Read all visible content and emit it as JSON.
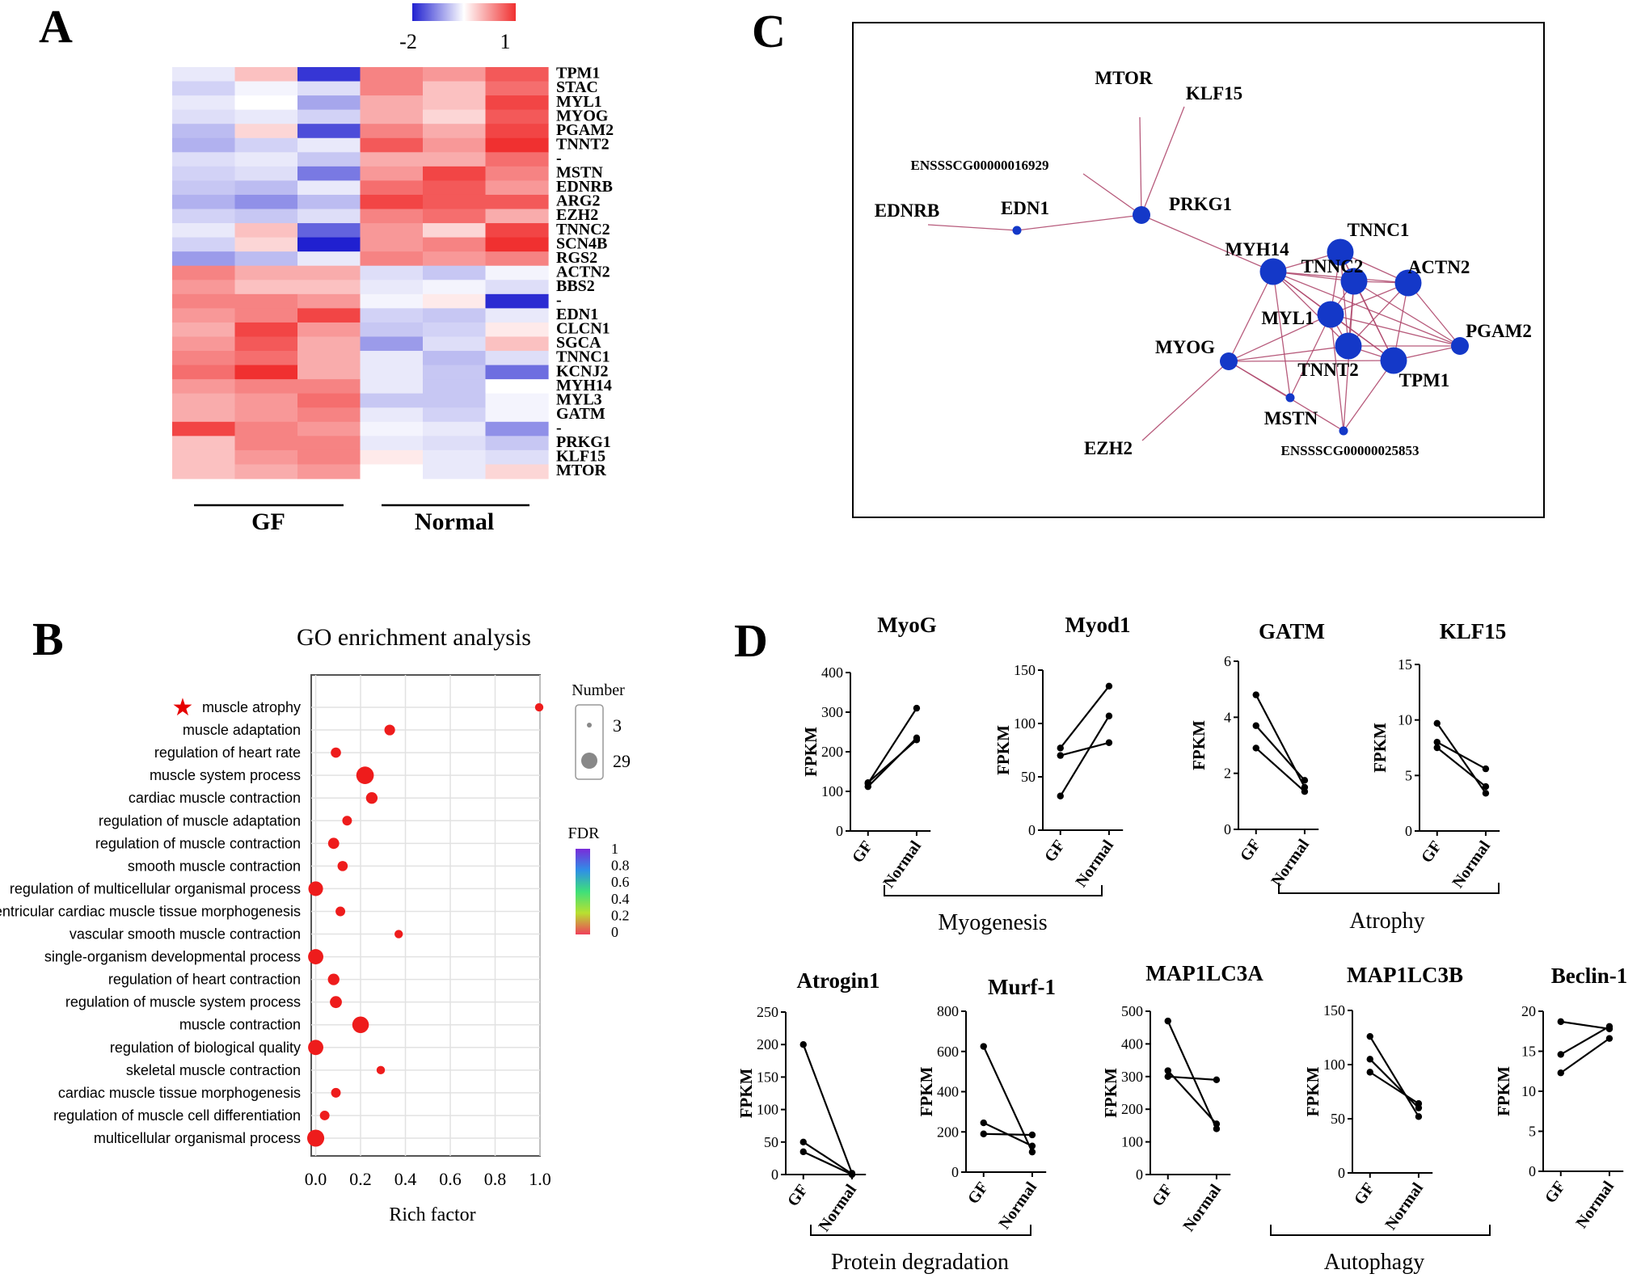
{
  "panel_labels": {
    "a": "A",
    "b": "B",
    "c": "C",
    "d": "D"
  },
  "chart_data": [
    {
      "id": "heatmap",
      "type": "heatmap",
      "colorbar": {
        "min_label": "-2",
        "max_label": "1",
        "min": -2,
        "max": 1,
        "low_color": "#2020d0",
        "mid_color": "#ffffff",
        "high_color": "#f03030"
      },
      "groups": [
        "GF",
        "Normal"
      ],
      "rows": [
        "TPM1",
        "STAC",
        "MYL1",
        "MYOG",
        "PGAM2",
        "TNNT2",
        "-",
        "MSTN",
        "EDNRB",
        "ARG2",
        "EZH2",
        "TNNC2",
        "SCN4B",
        "RGS2",
        "ACTN2",
        "BBS2",
        "-",
        "EDN1",
        "CLCN1",
        "SGCA",
        "TNNC1",
        "KCNJ2",
        "MYH14",
        "MYL3",
        "GATM",
        "-",
        "PRKG1",
        "KLF15",
        "MTOR"
      ],
      "values": [
        [
          -0.2,
          0.3,
          -1.8,
          0.6,
          0.5,
          0.8
        ],
        [
          -0.4,
          -0.1,
          -0.3,
          0.6,
          0.3,
          0.7
        ],
        [
          -0.2,
          0.0,
          -0.8,
          0.4,
          0.3,
          0.9
        ],
        [
          -0.3,
          -0.2,
          -0.4,
          0.4,
          0.2,
          0.8
        ],
        [
          -0.6,
          0.2,
          -1.6,
          0.6,
          0.4,
          0.9
        ],
        [
          -0.7,
          -0.4,
          -0.2,
          0.8,
          0.5,
          1.0
        ],
        [
          -0.3,
          -0.2,
          -0.5,
          0.4,
          0.4,
          0.7
        ],
        [
          -0.4,
          -0.3,
          -1.2,
          0.5,
          0.9,
          0.6
        ],
        [
          -0.5,
          -0.6,
          -0.2,
          0.7,
          0.8,
          0.5
        ],
        [
          -0.7,
          -1.0,
          -0.6,
          0.9,
          0.8,
          0.8
        ],
        [
          -0.4,
          -0.5,
          -0.3,
          0.6,
          0.7,
          0.4
        ],
        [
          -0.2,
          0.3,
          -1.4,
          0.5,
          0.2,
          0.9
        ],
        [
          -0.4,
          0.2,
          -2.0,
          0.5,
          0.6,
          1.0
        ],
        [
          -0.9,
          -0.6,
          -0.2,
          0.6,
          0.5,
          0.6
        ],
        [
          0.6,
          0.4,
          0.4,
          -0.3,
          -0.5,
          -0.1
        ],
        [
          0.5,
          0.3,
          0.3,
          -0.2,
          -0.1,
          -0.3
        ],
        [
          0.6,
          0.6,
          0.5,
          -0.1,
          0.1,
          -1.9
        ],
        [
          0.5,
          0.6,
          0.9,
          -0.4,
          -0.5,
          -0.2
        ],
        [
          0.4,
          0.9,
          0.5,
          -0.5,
          -0.4,
          0.1
        ],
        [
          0.5,
          0.8,
          0.4,
          -0.9,
          -0.3,
          0.3
        ],
        [
          0.6,
          0.7,
          0.4,
          -0.2,
          -0.6,
          -0.3
        ],
        [
          0.7,
          1.0,
          0.4,
          -0.2,
          -0.5,
          -1.3
        ],
        [
          0.5,
          0.6,
          0.6,
          -0.2,
          -0.5,
          0.0
        ],
        [
          0.4,
          0.5,
          0.7,
          -0.5,
          -0.5,
          -0.1
        ],
        [
          0.4,
          0.5,
          0.6,
          -0.2,
          -0.4,
          -0.1
        ],
        [
          0.9,
          0.6,
          0.5,
          -0.1,
          -0.2,
          -1.0
        ],
        [
          0.3,
          0.6,
          0.6,
          -0.2,
          -0.3,
          -0.5
        ],
        [
          0.3,
          0.5,
          0.6,
          0.1,
          -0.2,
          -0.3
        ],
        [
          0.3,
          0.4,
          0.5,
          0.0,
          -0.2,
          0.2
        ]
      ]
    },
    {
      "id": "go-bubble",
      "type": "scatter",
      "title": "GO enrichment analysis",
      "xlabel": "Rich factor",
      "xlim": [
        -0.02,
        1.0
      ],
      "xticks": [
        "0.0",
        "0.2",
        "0.4",
        "0.6",
        "0.8",
        "1.0"
      ],
      "xtick_values": [
        0,
        0.2,
        0.4,
        0.6,
        0.8,
        1.0
      ],
      "highlight_marker": "★",
      "size_legend": {
        "title": "Number",
        "items": [
          {
            "label": "3",
            "value": 3
          },
          {
            "label": "29",
            "value": 29
          }
        ]
      },
      "color_legend": {
        "title": "FDR",
        "ticks": [
          "1",
          "0.8",
          "0.6",
          "0.4",
          "0.2",
          "0"
        ]
      },
      "terms": [
        {
          "label": "muscle atrophy",
          "x": 1.0,
          "count": 3,
          "highlight": true
        },
        {
          "label": "muscle adaptation",
          "x": 0.33,
          "count": 7
        },
        {
          "label": "regulation of heart rate",
          "x": 0.09,
          "count": 6
        },
        {
          "label": "muscle system process",
          "x": 0.22,
          "count": 29
        },
        {
          "label": "cardiac muscle contraction",
          "x": 0.25,
          "count": 9
        },
        {
          "label": "regulation of muscle adaptation",
          "x": 0.14,
          "count": 5
        },
        {
          "label": "regulation of muscle contraction",
          "x": 0.08,
          "count": 8
        },
        {
          "label": "smooth muscle contraction",
          "x": 0.12,
          "count": 6
        },
        {
          "label": "regulation of multicellular organismal process",
          "x": 0.0,
          "count": 18
        },
        {
          "label": "ventricular cardiac muscle tissue morphogenesis",
          "x": 0.11,
          "count": 5
        },
        {
          "label": "vascular smooth muscle contraction",
          "x": 0.37,
          "count": 3
        },
        {
          "label": "single-organism developmental process",
          "x": 0.0,
          "count": 20
        },
        {
          "label": "regulation of heart contraction",
          "x": 0.08,
          "count": 9
        },
        {
          "label": "regulation of muscle system process",
          "x": 0.09,
          "count": 10
        },
        {
          "label": "muscle contraction",
          "x": 0.2,
          "count": 25
        },
        {
          "label": "regulation of biological quality",
          "x": 0.0,
          "count": 20
        },
        {
          "label": "skeletal muscle contraction",
          "x": 0.29,
          "count": 3
        },
        {
          "label": "cardiac muscle tissue morphogenesis",
          "x": 0.09,
          "count": 5
        },
        {
          "label": "regulation of muscle cell differentiation",
          "x": 0.04,
          "count": 5
        },
        {
          "label": "multicellular organismal process",
          "x": 0.0,
          "count": 27
        }
      ]
    },
    {
      "id": "network",
      "type": "network",
      "nodes": [
        {
          "id": "MTOR",
          "size": "none"
        },
        {
          "id": "KLF15",
          "size": "none"
        },
        {
          "id": "ENSSSCG00000016929",
          "size": "none"
        },
        {
          "id": "EDNRB",
          "size": "none"
        },
        {
          "id": "EDN1",
          "size": "small"
        },
        {
          "id": "PRKG1",
          "size": "medium"
        },
        {
          "id": "MYH14",
          "size": "large"
        },
        {
          "id": "TNNC1",
          "size": "large"
        },
        {
          "id": "TNNC2",
          "size": "large"
        },
        {
          "id": "ACTN2",
          "size": "large"
        },
        {
          "id": "MYL1",
          "size": "large"
        },
        {
          "id": "PGAM2",
          "size": "medium"
        },
        {
          "id": "MYOG",
          "size": "medium"
        },
        {
          "id": "TNNT2",
          "size": "large"
        },
        {
          "id": "TPM1",
          "size": "large"
        },
        {
          "id": "MSTN",
          "size": "small"
        },
        {
          "id": "EZH2",
          "size": "none"
        },
        {
          "id": "ENSSSCG00000025853",
          "size": "small"
        }
      ],
      "edges": [
        [
          "MTOR",
          "PRKG1"
        ],
        [
          "KLF15",
          "PRKG1"
        ],
        [
          "ENSSSCG00000016929",
          "PRKG1"
        ],
        [
          "EDNRB",
          "EDN1"
        ],
        [
          "EDN1",
          "PRKG1"
        ],
        [
          "PRKG1",
          "MYH14"
        ],
        [
          "MYH14",
          "TNNC1"
        ],
        [
          "MYH14",
          "TNNC2"
        ],
        [
          "MYH14",
          "ACTN2"
        ],
        [
          "MYH14",
          "MYL1"
        ],
        [
          "MYH14",
          "TNNT2"
        ],
        [
          "MYH14",
          "TPM1"
        ],
        [
          "MYH14",
          "PGAM2"
        ],
        [
          "MYH14",
          "MYOG"
        ],
        [
          "MYH14",
          "MSTN"
        ],
        [
          "TNNC1",
          "TNNC2"
        ],
        [
          "TNNC1",
          "ACTN2"
        ],
        [
          "TNNC1",
          "MYL1"
        ],
        [
          "TNNC1",
          "TNNT2"
        ],
        [
          "TNNC1",
          "TPM1"
        ],
        [
          "TNNC2",
          "ACTN2"
        ],
        [
          "TNNC2",
          "MYL1"
        ],
        [
          "TNNC2",
          "TNNT2"
        ],
        [
          "TNNC2",
          "TPM1"
        ],
        [
          "TNNC2",
          "PGAM2"
        ],
        [
          "ACTN2",
          "MYL1"
        ],
        [
          "ACTN2",
          "TNNT2"
        ],
        [
          "ACTN2",
          "TPM1"
        ],
        [
          "ACTN2",
          "PGAM2"
        ],
        [
          "MYL1",
          "TNNT2"
        ],
        [
          "MYL1",
          "TPM1"
        ],
        [
          "MYL1",
          "PGAM2"
        ],
        [
          "MYL1",
          "MYOG"
        ],
        [
          "TNNT2",
          "TPM1"
        ],
        [
          "TNNT2",
          "PGAM2"
        ],
        [
          "TNNT2",
          "MYOG"
        ],
        [
          "TPM1",
          "PGAM2"
        ],
        [
          "TPM1",
          "MYOG"
        ],
        [
          "MYOG",
          "MSTN"
        ],
        [
          "MYOG",
          "EZH2"
        ],
        [
          "MYOG",
          "ENSSSCG00000025853"
        ],
        [
          "MSTN",
          "MYL1"
        ],
        [
          "ENSSSCG00000025853",
          "MYL1"
        ],
        [
          "ENSSSCG00000025853",
          "TNNC2"
        ],
        [
          "ENSSSCG00000025853",
          "TPM1"
        ]
      ]
    },
    {
      "id": "fpkm-plots",
      "type": "line",
      "ylabel": "FPKM",
      "categories": [
        "GF",
        "Normal"
      ],
      "brackets": [
        "Myogenesis",
        "Atrophy",
        "Protein degradation",
        "Autophagy"
      ],
      "plots": [
        {
          "title": "MyoG",
          "ylim": [
            0,
            400
          ],
          "yticks": [
            "0",
            "100",
            "200",
            "300",
            "400"
          ],
          "series": [
            [
              120,
              310
            ],
            [
              112,
              235
            ],
            [
              122,
              230
            ]
          ]
        },
        {
          "title": "Myod1",
          "ylim": [
            0,
            150
          ],
          "yticks": [
            "0",
            "50",
            "100",
            "150"
          ],
          "series": [
            [
              77,
              135
            ],
            [
              32,
              107
            ],
            [
              70,
              82
            ]
          ]
        },
        {
          "title": "GATM",
          "ylim": [
            0,
            6
          ],
          "yticks": [
            "0",
            "2",
            "4",
            "6"
          ],
          "series": [
            [
              4.8,
              1.5
            ],
            [
              3.7,
              1.75
            ],
            [
              2.9,
              1.35
            ]
          ]
        },
        {
          "title": "KLF15",
          "ylim": [
            0,
            15
          ],
          "yticks": [
            "0",
            "5",
            "10",
            "15"
          ],
          "series": [
            [
              9.7,
              3.4
            ],
            [
              8.0,
              5.6
            ],
            [
              7.5,
              4.0
            ]
          ]
        },
        {
          "title": "Atrogin1",
          "ylim": [
            0,
            250
          ],
          "yticks": [
            "0",
            "50",
            "100",
            "150",
            "200",
            "250"
          ],
          "series": [
            [
              200,
              2
            ],
            [
              50,
              1
            ],
            [
              35,
              0
            ]
          ]
        },
        {
          "title": "Murf-1",
          "ylim": [
            0,
            800
          ],
          "yticks": [
            "0",
            "200",
            "400",
            "600",
            "800"
          ],
          "series": [
            [
              625,
              100
            ],
            [
              245,
              130
            ],
            [
              190,
              185
            ]
          ]
        },
        {
          "title": "MAP1LC3A",
          "ylim": [
            0,
            500
          ],
          "yticks": [
            "0",
            "100",
            "200",
            "300",
            "400",
            "500"
          ],
          "series": [
            [
              470,
              140
            ],
            [
              318,
              155
            ],
            [
              300,
              290
            ]
          ]
        },
        {
          "title": "MAP1LC3B",
          "ylim": [
            0,
            150
          ],
          "yticks": [
            "0",
            "50",
            "100",
            "150"
          ],
          "series": [
            [
              126,
              52
            ],
            [
              105,
              60
            ],
            [
              93,
              64
            ]
          ]
        },
        {
          "title": "Beclin-1",
          "ylim": [
            0,
            20
          ],
          "yticks": [
            "0",
            "5",
            "10",
            "15",
            "20"
          ],
          "series": [
            [
              18.7,
              17.8
            ],
            [
              14.6,
              18.1
            ],
            [
              12.3,
              16.6
            ]
          ]
        }
      ]
    }
  ]
}
